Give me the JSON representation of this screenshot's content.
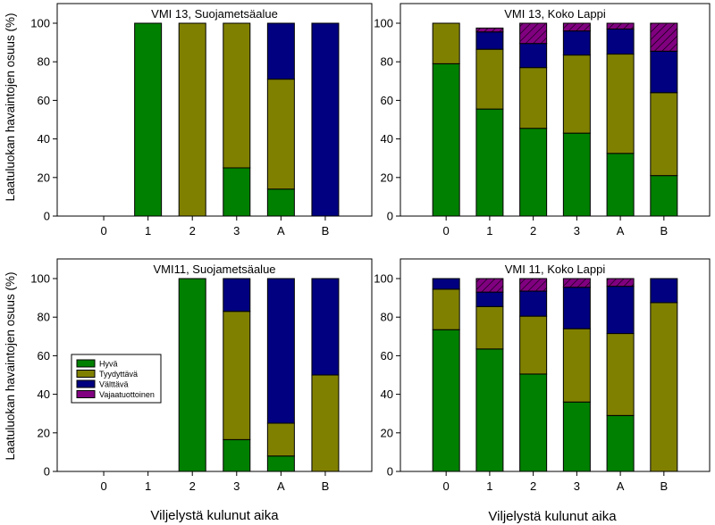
{
  "figure": {
    "ylabel": "Laatuluokan havaintojen osuus (%)",
    "xlabel": "Viljelystä kulunut aika"
  },
  "legend": {
    "items": [
      {
        "label": "Hyvä",
        "color": "#008000"
      },
      {
        "label": "Tyydyttävä",
        "color": "#808000"
      },
      {
        "label": "Välttävä",
        "color": "#000080"
      },
      {
        "label": "Vajaatuottoinen",
        "color": "#800080"
      }
    ]
  },
  "chart_data": [
    {
      "type": "bar",
      "stacked": true,
      "title": "VMI 13, Suojametsäalue",
      "categories": [
        "0",
        "1",
        "2",
        "3",
        "A",
        "B"
      ],
      "ylim": [
        0,
        100
      ],
      "yticks": [
        0,
        20,
        40,
        60,
        80,
        100
      ],
      "series": [
        {
          "name": "Hyvä",
          "values": [
            0,
            100,
            0,
            25,
            14,
            0
          ]
        },
        {
          "name": "Tyydyttävä",
          "values": [
            0,
            0,
            100,
            75,
            57,
            0
          ]
        },
        {
          "name": "Välttävä",
          "values": [
            0,
            0,
            0,
            0,
            29,
            100
          ]
        },
        {
          "name": "Vajaatuottoinen",
          "values": [
            0,
            0,
            0,
            0,
            0,
            0
          ]
        }
      ]
    },
    {
      "type": "bar",
      "stacked": true,
      "title": "VMI 13, Koko Lappi",
      "categories": [
        "0",
        "1",
        "2",
        "3",
        "A",
        "B"
      ],
      "ylim": [
        0,
        100
      ],
      "yticks": [
        0,
        20,
        40,
        60,
        80,
        100
      ],
      "series": [
        {
          "name": "Hyvä",
          "values": [
            79,
            55.5,
            45.5,
            43,
            32.5,
            21
          ]
        },
        {
          "name": "Tyydyttävä",
          "values": [
            21,
            31,
            31.5,
            40.5,
            51.5,
            43
          ]
        },
        {
          "name": "Välttävä",
          "values": [
            0,
            9,
            12.5,
            12.5,
            13,
            21.5
          ]
        },
        {
          "name": "Vajaatuottoinen",
          "values": [
            0,
            2,
            10.5,
            4,
            3,
            14.5
          ]
        }
      ]
    },
    {
      "type": "bar",
      "stacked": true,
      "title": "VMI11, Suojametsäalue",
      "categories": [
        "0",
        "1",
        "2",
        "3",
        "A",
        "B"
      ],
      "ylim": [
        0,
        100
      ],
      "yticks": [
        0,
        20,
        40,
        60,
        80,
        100
      ],
      "series": [
        {
          "name": "Hyvä",
          "values": [
            0,
            0,
            100,
            16.5,
            8,
            0
          ]
        },
        {
          "name": "Tyydyttävä",
          "values": [
            0,
            0,
            0,
            66.5,
            17,
            50
          ]
        },
        {
          "name": "Välttävä",
          "values": [
            0,
            0,
            0,
            17,
            75,
            50
          ]
        },
        {
          "name": "Vajaatuottoinen",
          "values": [
            0,
            0,
            0,
            0,
            0,
            0
          ]
        }
      ]
    },
    {
      "type": "bar",
      "stacked": true,
      "title": "VMI 11, Koko Lappi",
      "categories": [
        "0",
        "1",
        "2",
        "3",
        "A",
        "B"
      ],
      "ylim": [
        0,
        100
      ],
      "yticks": [
        0,
        20,
        40,
        60,
        80,
        100
      ],
      "series": [
        {
          "name": "Hyvä",
          "values": [
            73.5,
            63.5,
            50.5,
            36,
            29,
            0
          ]
        },
        {
          "name": "Tyydyttävä",
          "values": [
            21,
            22,
            30,
            38,
            42.5,
            87.5
          ]
        },
        {
          "name": "Välttävä",
          "values": [
            5.5,
            7.5,
            13,
            21.5,
            24.5,
            12.5
          ]
        },
        {
          "name": "Vajaatuottoinen",
          "values": [
            0,
            7,
            6.5,
            4.5,
            4,
            0
          ]
        }
      ]
    }
  ]
}
